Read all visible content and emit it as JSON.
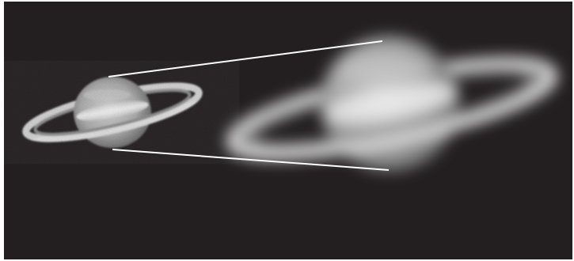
{
  "scene": {
    "background_color": "#231f20",
    "frame_color": "#ffffff",
    "subject": "saturn-icon",
    "planet_colors": {
      "highlight": "#e8e8e8",
      "body": "#b8b8b8",
      "shadow": "#6a6a6a",
      "ring_light": "#d8d8d8",
      "ring_dark": "#7a7a7a"
    },
    "connector_color": "#ffffff"
  }
}
